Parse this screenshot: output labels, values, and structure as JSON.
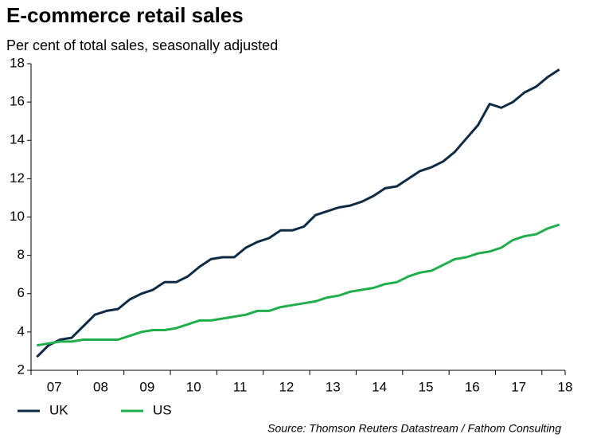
{
  "chart_data": {
    "type": "line",
    "title": "E-commerce retail sales",
    "subtitle": "Per cent of total sales, seasonally adjusted",
    "source": "Source: Thomson Reuters Datastream / Fathom Consulting",
    "categories": [
      null,
      "07",
      null,
      null,
      null,
      "08",
      null,
      null,
      null,
      "09",
      null,
      null,
      null,
      "10",
      null,
      null,
      null,
      "11",
      null,
      null,
      null,
      "12",
      null,
      null,
      null,
      "13",
      null,
      null,
      null,
      "14",
      null,
      null,
      null,
      "15",
      null,
      null,
      null,
      "16",
      null,
      null,
      null,
      "17",
      null,
      null,
      null,
      "18"
    ],
    "series": [
      {
        "name": "UK",
        "color": "#0d2b45",
        "values": [
          2.7,
          3.3,
          3.6,
          3.7,
          4.3,
          4.9,
          5.1,
          5.2,
          5.7,
          6.0,
          6.2,
          6.6,
          6.6,
          6.9,
          7.4,
          7.8,
          7.9,
          7.9,
          8.4,
          8.7,
          8.9,
          9.3,
          9.3,
          9.5,
          10.1,
          10.3,
          10.5,
          10.6,
          10.8,
          11.1,
          11.5,
          11.6,
          12.0,
          12.4,
          12.6,
          12.9,
          13.4,
          14.1,
          14.8,
          15.9,
          15.7,
          16.0,
          16.5,
          16.8,
          17.3,
          17.7
        ]
      },
      {
        "name": "US",
        "color": "#1fae4b",
        "values": [
          3.3,
          3.4,
          3.5,
          3.5,
          3.6,
          3.6,
          3.6,
          3.6,
          3.8,
          4.0,
          4.1,
          4.1,
          4.2,
          4.4,
          4.6,
          4.6,
          4.7,
          4.8,
          4.9,
          5.1,
          5.1,
          5.3,
          5.4,
          5.5,
          5.6,
          5.8,
          5.9,
          6.1,
          6.2,
          6.3,
          6.5,
          6.6,
          6.9,
          7.1,
          7.2,
          7.5,
          7.8,
          7.9,
          8.1,
          8.2,
          8.4,
          8.8,
          9.0,
          9.1,
          9.4,
          9.6
        ]
      }
    ],
    "ylim": [
      2,
      18
    ],
    "yticks": [
      2,
      4,
      6,
      8,
      10,
      12,
      14,
      16,
      18
    ],
    "grid": false,
    "legend": "bottom"
  }
}
